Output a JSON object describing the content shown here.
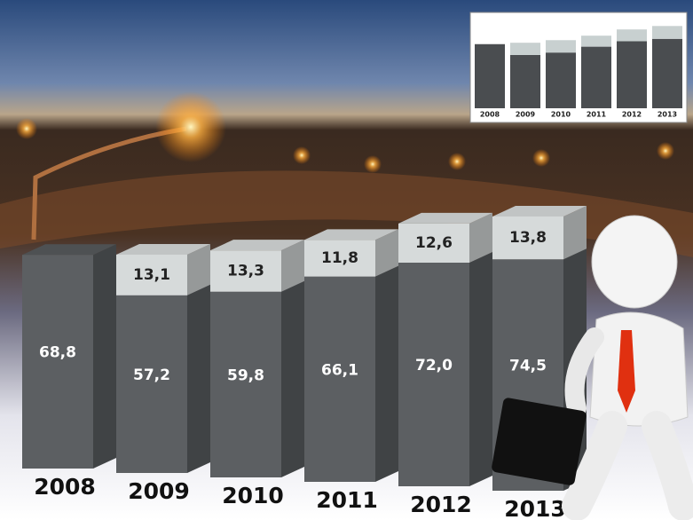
{
  "chart_data": {
    "type": "bar",
    "stacked": true,
    "categories": [
      "2008",
      "2009",
      "2010",
      "2011",
      "2012",
      "2013"
    ],
    "series": [
      {
        "color": "#5c5f62",
        "values": [
          68.8,
          57.2,
          59.8,
          66.1,
          72.0,
          74.5
        ],
        "value_labels": [
          "68,8",
          "57,2",
          "59,8",
          "66,1",
          "72,0",
          "74,5"
        ]
      },
      {
        "color": "#d6dada",
        "values": [
          null,
          13.1,
          13.3,
          11.8,
          12.6,
          13.8
        ],
        "value_labels": [
          null,
          "13,1",
          "13,3",
          "11,8",
          "12,6",
          "13,8"
        ]
      }
    ]
  }
}
